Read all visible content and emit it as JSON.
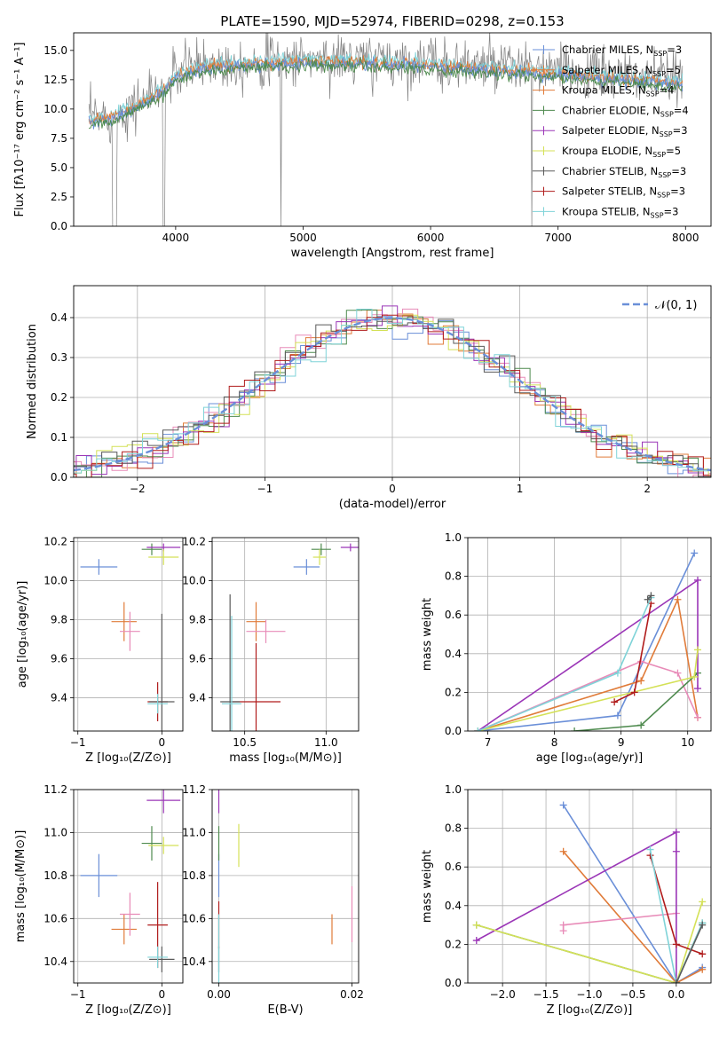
{
  "figure_title": "PLATE=1590, MJD=52974, FIBERID=0298, z=0.153",
  "models": [
    {
      "name": "Chabrier MILES",
      "nssp": "3",
      "color": "#6a8fd8"
    },
    {
      "name": "Salpeter MILES",
      "nssp": "5",
      "color": "#e07b39"
    },
    {
      "name": "Kroupa MILES",
      "nssp": "4",
      "color": "#e07b39"
    },
    {
      "name": "Chabrier ELODIE",
      "nssp": "4",
      "color": "#4e8a4e"
    },
    {
      "name": "Salpeter ELODIE",
      "nssp": "3",
      "color": "#9b36b7"
    },
    {
      "name": "Kroupa ELODIE",
      "nssp": "5",
      "color": "#d4e157"
    },
    {
      "name": "Chabrier STELIB",
      "nssp": "3",
      "color": "#5a5a5a"
    },
    {
      "name": "Salpeter STELIB",
      "nssp": "3",
      "color": "#b01c1c"
    },
    {
      "name": "Kroupa STELIB",
      "nssp": "3",
      "color": "#7fd3d8"
    }
  ],
  "chart_data": [
    {
      "id": "spectrum",
      "type": "line",
      "xlabel": "wavelength [Angstrom, rest frame]",
      "ylabel": "Flux [fλ10⁻¹⁷ erg cm⁻² s⁻¹ A⁻¹]",
      "xlim": [
        3200,
        8200
      ],
      "ylim": [
        0,
        16.5
      ],
      "xticks": [
        4000,
        5000,
        6000,
        7000,
        8000
      ],
      "yticks": [
        0.0,
        2.5,
        5.0,
        7.5,
        10.0,
        12.5,
        15.0
      ],
      "data_color": "#808080",
      "continuum": {
        "x": [
          3300,
          3500,
          3700,
          3900,
          4000,
          4200,
          4500,
          5000,
          5500,
          6000,
          6500,
          7000,
          7500,
          8000
        ],
        "y": [
          9.2,
          9.5,
          10.5,
          11.8,
          13.0,
          13.8,
          14.0,
          14.3,
          14.2,
          14.0,
          13.6,
          13.2,
          12.8,
          12.4
        ]
      }
    },
    {
      "id": "residuals",
      "type": "histogram",
      "xlabel": "(data-model)/error",
      "ylabel": "Normed distribution",
      "xlim": [
        -2.5,
        2.5
      ],
      "ylim": [
        0,
        0.48
      ],
      "xticks": [
        -2,
        -1,
        0,
        1,
        2
      ],
      "yticks": [
        0.0,
        0.1,
        0.2,
        0.3,
        0.4
      ],
      "legend": "𝒩(0, 1)",
      "normal_color": "#6a8fd8"
    },
    {
      "id": "age_vs_Z",
      "type": "scatter",
      "xlabel": "Z [log₁₀(Z/Z⊙)]",
      "ylabel": "age  [log₁₀(age/yr)]",
      "xlim": [
        -1.05,
        0.25
      ],
      "ylim": [
        9.23,
        10.22
      ],
      "xticks": [
        -1,
        0
      ],
      "yticks": [
        9.4,
        9.6,
        9.8,
        10.0,
        10.2
      ],
      "points": [
        {
          "x": -0.75,
          "y": 10.07,
          "xe": 0.22,
          "ye": 0.04,
          "color": "#6a8fd8"
        },
        {
          "x": -0.45,
          "y": 9.79,
          "xe": 0.15,
          "ye": 0.1,
          "color": "#e07b39"
        },
        {
          "x": -0.38,
          "y": 9.74,
          "xe": 0.12,
          "ye": 0.1,
          "color": "#e88bb8"
        },
        {
          "x": -0.12,
          "y": 10.16,
          "xe": 0.12,
          "ye": 0.03,
          "color": "#4e8a4e"
        },
        {
          "x": 0.02,
          "y": 10.17,
          "xe": 0.2,
          "ye": 0.02,
          "color": "#9b36b7"
        },
        {
          "x": 0.02,
          "y": 10.12,
          "xe": 0.18,
          "ye": 0.04,
          "color": "#d4e157"
        },
        {
          "x": -0.05,
          "y": 9.38,
          "xe": 0.12,
          "ye": 0.1,
          "color": "#b01c1c"
        },
        {
          "x": 0.0,
          "y": 9.38,
          "xe": 0.15,
          "ye": 0.45,
          "color": "#5a5a5a"
        },
        {
          "x": -0.05,
          "y": 9.37,
          "xe": 0.12,
          "ye": 0.05,
          "color": "#7fd3d8"
        }
      ]
    },
    {
      "id": "age_vs_mass",
      "type": "scatter",
      "xlabel": "mass [log₁₀(M/M⊙)]",
      "ylabel": "",
      "xlim": [
        10.3,
        11.2
      ],
      "ylim": [
        9.23,
        10.22
      ],
      "xticks": [
        10.5,
        11.0
      ],
      "yticks": [
        9.4,
        9.6,
        9.8,
        10.0,
        10.2
      ],
      "points": [
        {
          "x": 10.88,
          "y": 10.07,
          "xe": 0.08,
          "ye": 0.04,
          "color": "#6a8fd8"
        },
        {
          "x": 10.57,
          "y": 9.79,
          "xe": 0.06,
          "ye": 0.1,
          "color": "#e07b39"
        },
        {
          "x": 10.63,
          "y": 9.74,
          "xe": 0.12,
          "ye": 0.06,
          "color": "#e88bb8"
        },
        {
          "x": 10.97,
          "y": 10.16,
          "xe": 0.06,
          "ye": 0.03,
          "color": "#4e8a4e"
        },
        {
          "x": 11.15,
          "y": 10.17,
          "xe": 0.06,
          "ye": 0.02,
          "color": "#9b36b7"
        },
        {
          "x": 10.96,
          "y": 10.12,
          "xe": 0.04,
          "ye": 0.04,
          "color": "#d4e157"
        },
        {
          "x": 10.57,
          "y": 9.38,
          "xe": 0.15,
          "ye": 0.3,
          "color": "#b01c1c"
        },
        {
          "x": 10.41,
          "y": 9.38,
          "xe": 0.06,
          "ye": 0.55,
          "color": "#5a5a5a"
        },
        {
          "x": 10.42,
          "y": 9.37,
          "xe": 0.06,
          "ye": 0.45,
          "color": "#7fd3d8"
        }
      ]
    },
    {
      "id": "mass_weight_vs_age",
      "type": "line",
      "xlabel": "age  [log₁₀(age/yr)]",
      "ylabel": "mass weight",
      "xlim": [
        6.7,
        10.35
      ],
      "ylim": [
        0,
        1.0
      ],
      "xticks": [
        7,
        8,
        9,
        10
      ],
      "yticks": [
        0.0,
        0.2,
        0.4,
        0.6,
        0.8,
        1.0
      ],
      "series": [
        {
          "color": "#6a8fd8",
          "x": [
            6.85,
            8.95,
            10.1
          ],
          "y": [
            0.0,
            0.08,
            0.92
          ]
        },
        {
          "color": "#e07b39",
          "x": [
            6.85,
            9.3,
            9.85,
            10.15
          ],
          "y": [
            0.0,
            0.26,
            0.68,
            0.07
          ]
        },
        {
          "color": "#e88bb8",
          "x": [
            6.85,
            9.3,
            9.85,
            10.15
          ],
          "y": [
            0.0,
            0.36,
            0.3,
            0.07
          ]
        },
        {
          "color": "#4e8a4e",
          "x": [
            8.3,
            9.3,
            10.15
          ],
          "y": [
            0.0,
            0.03,
            0.3
          ]
        },
        {
          "color": "#9b36b7",
          "x": [
            6.85,
            10.15,
            10.15
          ],
          "y": [
            0.0,
            0.78,
            0.22
          ]
        },
        {
          "color": "#d4e157",
          "x": [
            6.85,
            10.1,
            10.15
          ],
          "y": [
            0.0,
            0.28,
            0.42
          ]
        },
        {
          "color": "#b01c1c",
          "x": [
            8.9,
            9.2,
            9.45
          ],
          "y": [
            0.15,
            0.2,
            0.66
          ]
        },
        {
          "color": "#7fd3d8",
          "x": [
            6.85,
            8.95,
            9.45
          ],
          "y": [
            0.0,
            0.3,
            0.69
          ]
        },
        {
          "color": "#5a5a5a",
          "x": [
            9.4,
            9.45
          ],
          "y": [
            0.68,
            0.7
          ]
        }
      ]
    },
    {
      "id": "mass_vs_Z",
      "type": "scatter",
      "xlabel": "Z [log₁₀(Z/Z⊙)]",
      "ylabel": "mass [log₁₀(M/M⊙)]",
      "xlim": [
        -1.05,
        0.25
      ],
      "ylim": [
        10.3,
        11.2
      ],
      "xticks": [
        -1,
        0
      ],
      "yticks": [
        10.4,
        10.6,
        10.8,
        11.0,
        11.2
      ],
      "points": [
        {
          "x": -0.75,
          "y": 10.8,
          "xe": 0.22,
          "ye": 0.1,
          "color": "#6a8fd8"
        },
        {
          "x": -0.45,
          "y": 10.55,
          "xe": 0.15,
          "ye": 0.07,
          "color": "#e07b39"
        },
        {
          "x": -0.38,
          "y": 10.62,
          "xe": 0.12,
          "ye": 0.1,
          "color": "#e88bb8"
        },
        {
          "x": -0.12,
          "y": 10.95,
          "xe": 0.12,
          "ye": 0.08,
          "color": "#4e8a4e"
        },
        {
          "x": 0.02,
          "y": 11.15,
          "xe": 0.2,
          "ye": 0.06,
          "color": "#9b36b7"
        },
        {
          "x": 0.02,
          "y": 10.94,
          "xe": 0.18,
          "ye": 0.04,
          "color": "#d4e157"
        },
        {
          "x": -0.05,
          "y": 10.57,
          "xe": 0.12,
          "ye": 0.2,
          "color": "#b01c1c"
        },
        {
          "x": 0.0,
          "y": 10.41,
          "xe": 0.15,
          "ye": 0.06,
          "color": "#5a5a5a"
        },
        {
          "x": -0.05,
          "y": 10.42,
          "xe": 0.12,
          "ye": 0.05,
          "color": "#7fd3d8"
        }
      ]
    },
    {
      "id": "mass_vs_ebv",
      "type": "scatter",
      "xlabel": "E(B-V)",
      "ylabel": "",
      "xlim": [
        -0.001,
        0.021
      ],
      "ylim": [
        10.3,
        11.2
      ],
      "xticks": [
        0.0,
        0.02
      ],
      "yticks": [
        10.4,
        10.6,
        10.8,
        11.0,
        11.2
      ],
      "points": [
        {
          "x": 0.0,
          "y": 10.8,
          "xe": 0.0,
          "ye": 0.1,
          "color": "#6a8fd8"
        },
        {
          "x": 0.017,
          "y": 10.55,
          "xe": 0.0,
          "ye": 0.07,
          "color": "#e07b39"
        },
        {
          "x": 0.02,
          "y": 10.62,
          "xe": 0.0,
          "ye": 0.13,
          "color": "#e88bb8"
        },
        {
          "x": 0.0,
          "y": 10.95,
          "xe": 0.0,
          "ye": 0.08,
          "color": "#4e8a4e"
        },
        {
          "x": 0.0,
          "y": 11.15,
          "xe": 0.0,
          "ye": 0.06,
          "color": "#9b36b7"
        },
        {
          "x": 0.003,
          "y": 10.94,
          "xe": 0.0,
          "ye": 0.1,
          "color": "#d4e157"
        },
        {
          "x": 0.0,
          "y": 10.57,
          "xe": 0.0,
          "ye": 0.11,
          "color": "#b01c1c"
        },
        {
          "x": 0.0,
          "y": 10.41,
          "xe": 0.0,
          "ye": 0.06,
          "color": "#5a5a5a"
        },
        {
          "x": 0.0,
          "y": 10.42,
          "xe": 0.0,
          "ye": 0.2,
          "color": "#7fd3d8"
        }
      ]
    },
    {
      "id": "mass_weight_vs_Z",
      "type": "line",
      "xlabel": "Z [log₁₀(Z/Z⊙)]",
      "ylabel": "mass weight",
      "xlim": [
        -2.4,
        0.4
      ],
      "ylim": [
        0,
        1.0
      ],
      "xticks": [
        -2.0,
        -1.5,
        -1.0,
        -0.5,
        0.0
      ],
      "yticks": [
        0.0,
        0.2,
        0.4,
        0.6,
        0.8,
        1.0
      ],
      "series": [
        {
          "color": "#6a8fd8",
          "x": [
            -1.3,
            0.0,
            0.3
          ],
          "y": [
            0.92,
            0.0,
            0.08
          ]
        },
        {
          "color": "#e07b39",
          "x": [
            -1.3,
            0.0,
            0.3
          ],
          "y": [
            0.68,
            0.0,
            0.07
          ]
        },
        {
          "color": "#e88bb8",
          "x": [
            -1.3,
            -1.3,
            0.0
          ],
          "y": [
            0.27,
            0.3,
            0.36
          ]
        },
        {
          "color": "#4e8a4e",
          "x": [
            -2.3,
            0.0,
            0.3
          ],
          "y": [
            0.3,
            0.0,
            0.31
          ]
        },
        {
          "color": "#9b36b7",
          "x": [
            -2.3,
            0.0,
            0.0,
            0.0
          ],
          "y": [
            0.22,
            0.78,
            0.68,
            0.0
          ]
        },
        {
          "color": "#d4e157",
          "x": [
            -2.3,
            0.0,
            0.3
          ],
          "y": [
            0.3,
            0.0,
            0.42
          ]
        },
        {
          "color": "#b01c1c",
          "x": [
            -0.3,
            0.0,
            0.3
          ],
          "y": [
            0.66,
            0.2,
            0.15
          ]
        },
        {
          "color": "#7fd3d8",
          "x": [
            -0.3,
            0.0,
            0.3
          ],
          "y": [
            0.69,
            0.0,
            0.31
          ]
        },
        {
          "color": "#5a5a5a",
          "x": [
            0.0,
            0.3
          ],
          "y": [
            0.0,
            0.3
          ]
        }
      ]
    }
  ]
}
